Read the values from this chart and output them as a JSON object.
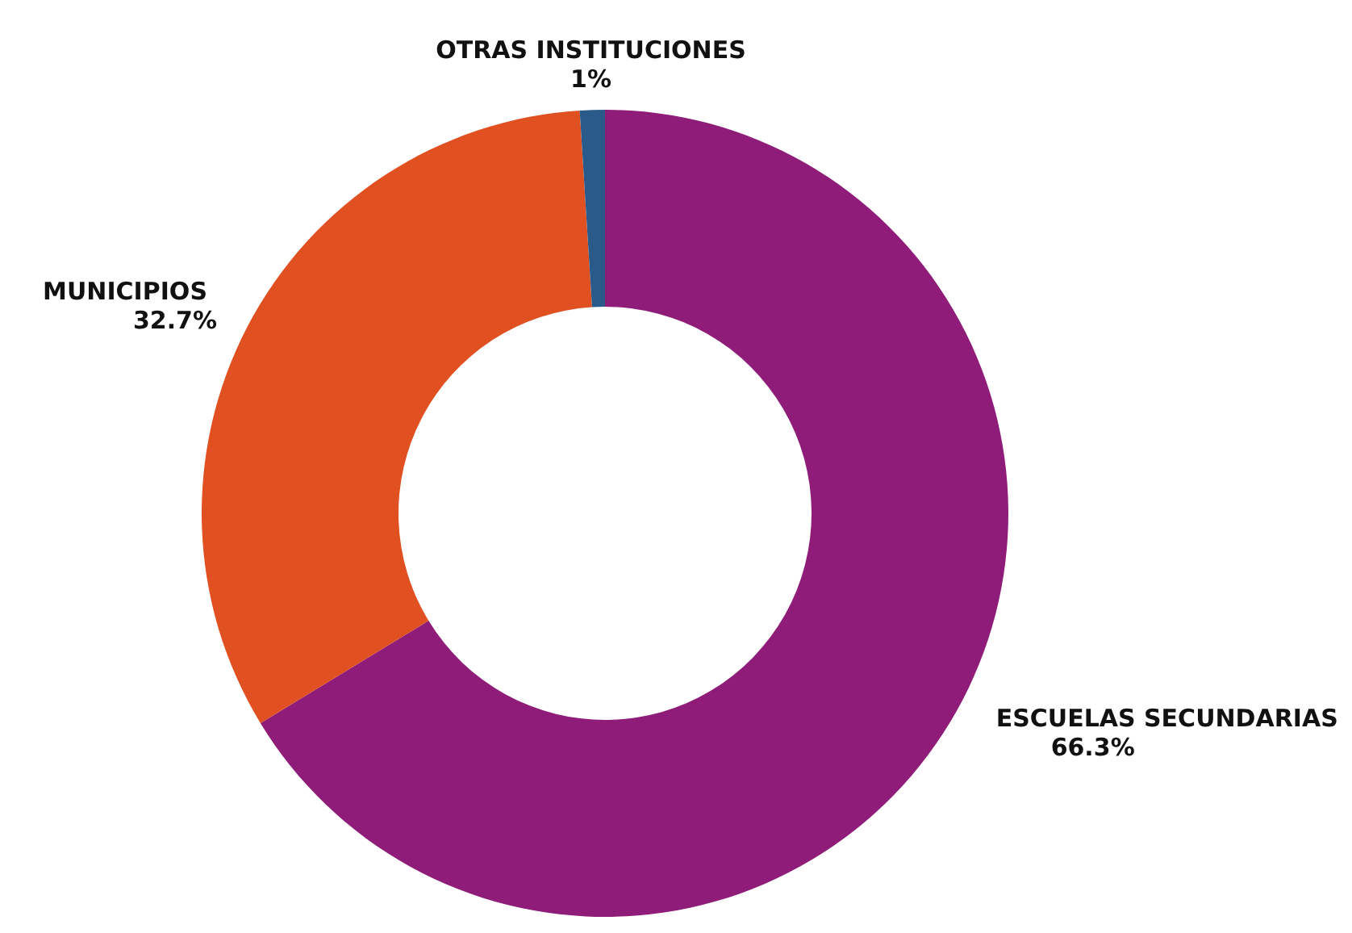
{
  "chart_data": {
    "type": "donut",
    "categories": [
      "ESCUELAS SECUNDARIAS",
      "MUNICIPIOS",
      "OTRAS INSTITUCIONES"
    ],
    "values": [
      66.3,
      32.7,
      1
    ],
    "value_labels": [
      "66.3%",
      "32.7%",
      "1%"
    ],
    "colors": [
      "#8e1c78",
      "#e05020",
      "#2a5a8a"
    ]
  }
}
